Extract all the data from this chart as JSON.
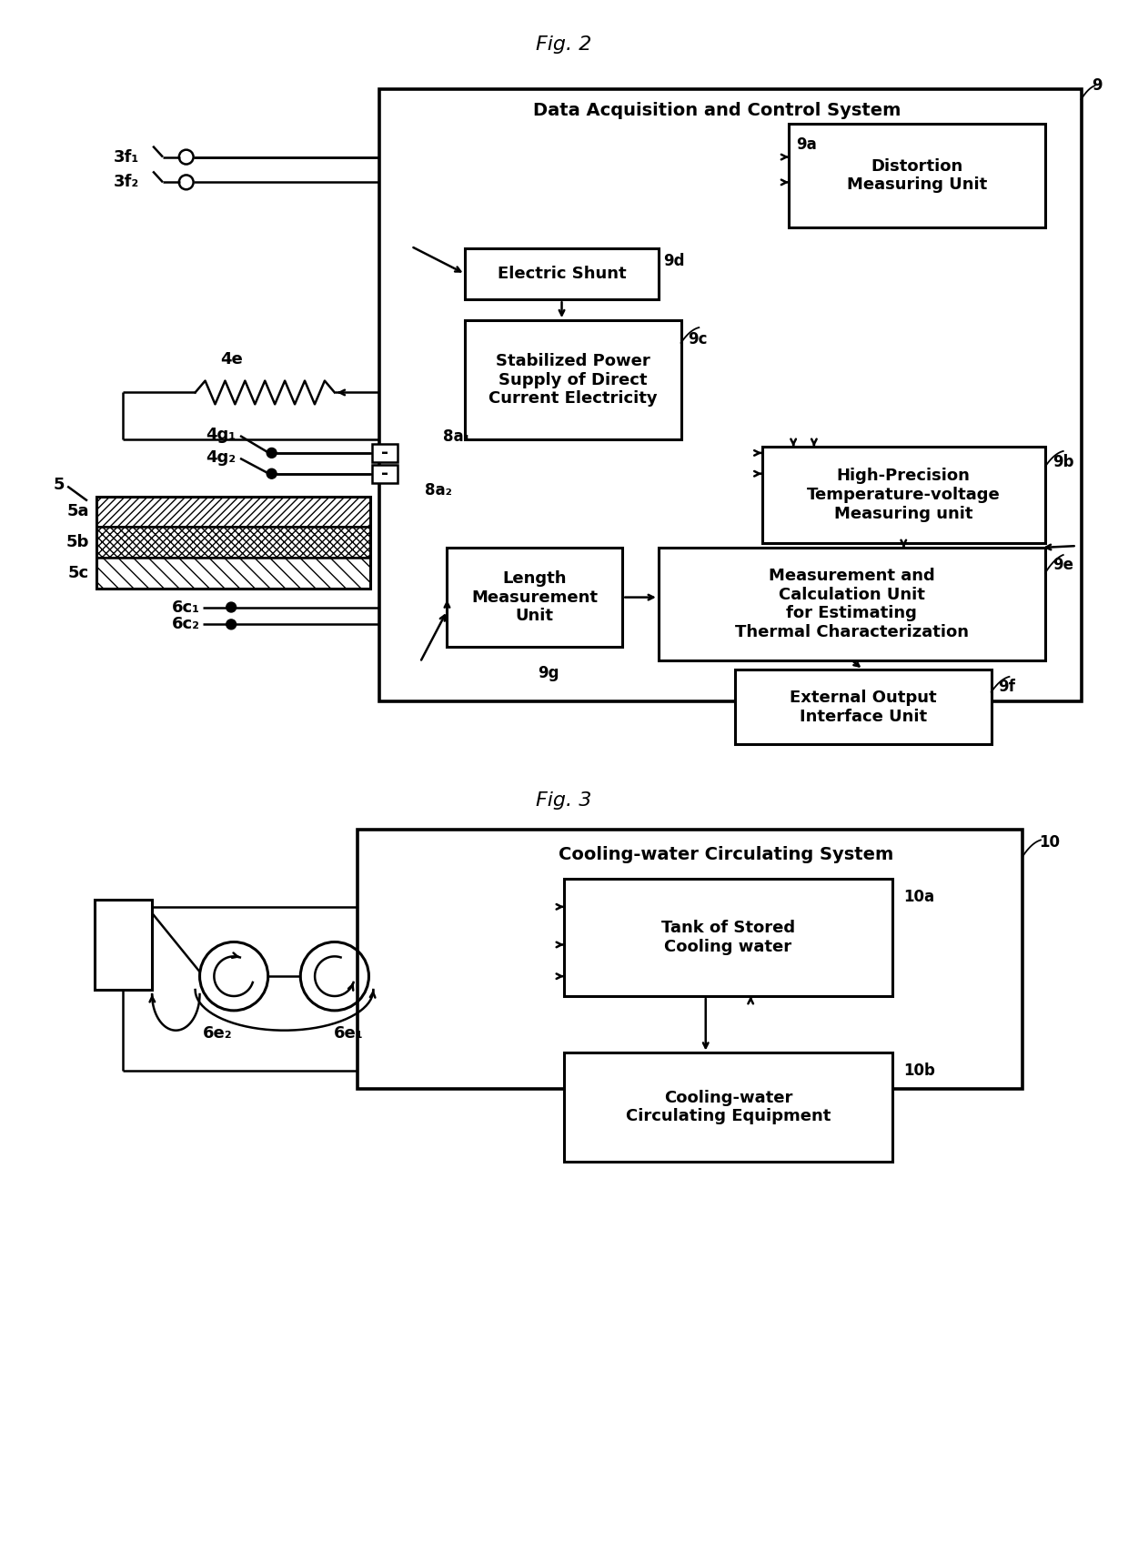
{
  "fig_title1": "Fig. 2",
  "fig_title2": "Fig. 3",
  "bg": "#ffffff",
  "dacs_label": "Data Acquisition and Control System",
  "cwcs_label": "Cooling-water Circulating System",
  "label_9a": "Distortion\nMeasuring Unit",
  "label_9d": "Electric Shunt",
  "label_9c": "Stabilized Power\nSupply of Direct\nCurrent Electricity",
  "label_9b": "High-Precision\nTemperature-voltage\nMeasuring unit",
  "label_9g": "Length\nMeasurement\nUnit",
  "label_9e": "Measurement and\nCalculation Unit\nfor Estimating\nThermal Characterization",
  "label_9f": "External Output\nInterface Unit",
  "label_10a": "Tank of Stored\nCooling water",
  "label_10b": "Cooling-water\nCirculating Equipment"
}
